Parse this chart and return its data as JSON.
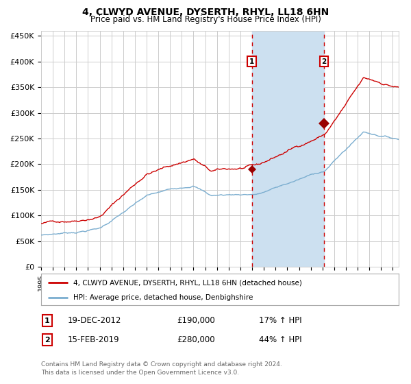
{
  "title": "4, CLWYD AVENUE, DYSERTH, RHYL, LL18 6HN",
  "subtitle": "Price paid vs. HM Land Registry's House Price Index (HPI)",
  "ylim": [
    0,
    460000
  ],
  "yticks": [
    0,
    50000,
    100000,
    150000,
    200000,
    250000,
    300000,
    350000,
    400000,
    450000
  ],
  "ytick_labels": [
    "£0",
    "£50K",
    "£100K",
    "£150K",
    "£200K",
    "£250K",
    "£300K",
    "£350K",
    "£400K",
    "£450K"
  ],
  "sale1_date_num": 2012.97,
  "sale1_price": 190000,
  "sale1_label": "1",
  "sale2_date_num": 2019.12,
  "sale2_price": 280000,
  "sale2_label": "2",
  "red_line_color": "#cc0000",
  "blue_line_color": "#7aadcf",
  "shade_color": "#cce0f0",
  "dashed_line_color": "#cc0000",
  "marker_color": "#990000",
  "grid_color": "#cccccc",
  "background_color": "#ffffff",
  "legend_label_red": "4, CLWYD AVENUE, DYSERTH, RHYL, LL18 6HN (detached house)",
  "legend_label_blue": "HPI: Average price, detached house, Denbighshire",
  "footer1": "Contains HM Land Registry data © Crown copyright and database right 2024.",
  "footer2": "This data is licensed under the Open Government Licence v3.0.",
  "table_row1_num": "1",
  "table_row1_date": "19-DEC-2012",
  "table_row1_price": "£190,000",
  "table_row1_pct": "17% ↑ HPI",
  "table_row2_num": "2",
  "table_row2_date": "15-FEB-2019",
  "table_row2_price": "£280,000",
  "table_row2_pct": "44% ↑ HPI"
}
